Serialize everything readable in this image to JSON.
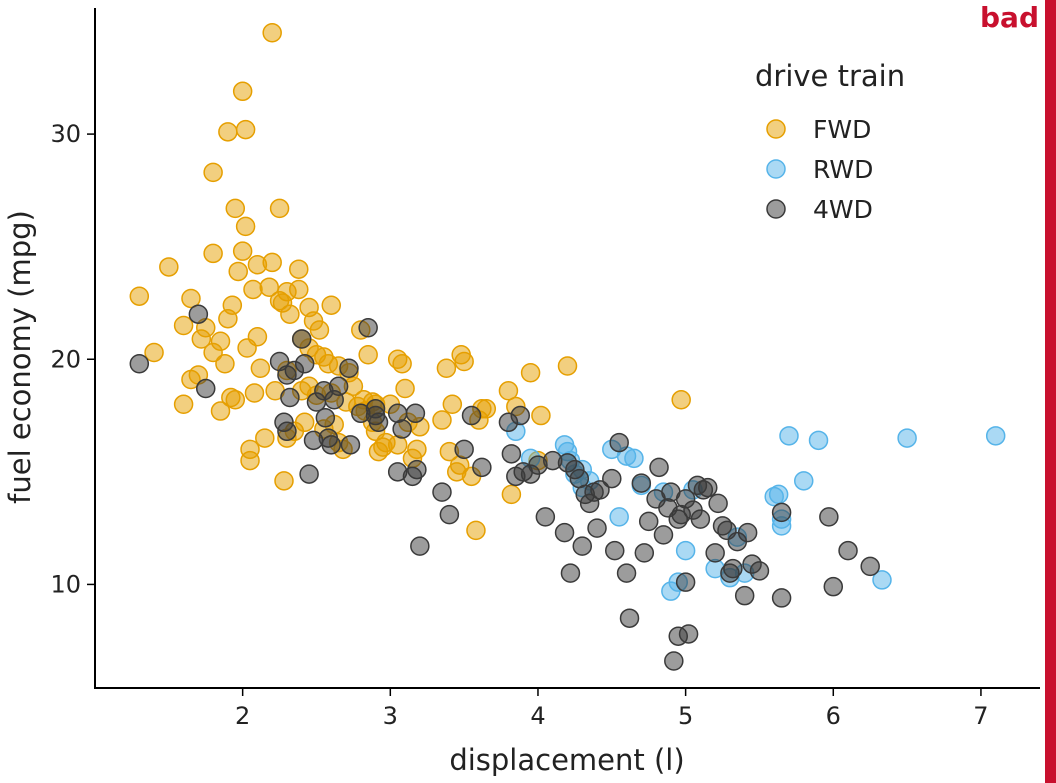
{
  "badge": {
    "text": "bad",
    "color": "#c8102e"
  },
  "colors": {
    "FWD": "#E69F00",
    "RWD": "#56B4E9",
    "4WD": "#3a3a3a"
  },
  "chart_data": {
    "type": "scatter",
    "title": "",
    "xlabel": "displacement (l)",
    "ylabel": "fuel economy (mpg)",
    "xlim": [
      1.0,
      7.4
    ],
    "ylim": [
      5.4,
      35.6
    ],
    "xticks": [
      2,
      3,
      4,
      5,
      6,
      7
    ],
    "yticks": [
      10,
      20,
      30
    ],
    "grid": false,
    "legend": {
      "title": "drive train",
      "position": "top-right",
      "entries": [
        "FWD",
        "RWD",
        "4WD"
      ]
    },
    "series": [
      {
        "name": "FWD",
        "x": [
          1.3,
          1.4,
          1.5,
          1.6,
          1.6,
          1.65,
          1.65,
          1.7,
          1.72,
          1.75,
          1.8,
          1.8,
          1.8,
          1.85,
          1.85,
          1.88,
          1.9,
          1.9,
          1.92,
          1.93,
          1.95,
          1.95,
          1.97,
          2.0,
          2.0,
          2.02,
          2.02,
          2.03,
          2.05,
          2.05,
          2.07,
          2.08,
          2.1,
          2.1,
          2.12,
          2.15,
          2.18,
          2.2,
          2.2,
          2.22,
          2.25,
          2.25,
          2.27,
          2.28,
          2.3,
          2.3,
          2.3,
          2.32,
          2.35,
          2.38,
          2.38,
          2.4,
          2.4,
          2.42,
          2.45,
          2.45,
          2.45,
          2.48,
          2.5,
          2.5,
          2.52,
          2.55,
          2.55,
          2.58,
          2.6,
          2.6,
          2.62,
          2.65,
          2.65,
          2.68,
          2.7,
          2.72,
          2.75,
          2.78,
          2.8,
          2.82,
          2.83,
          2.85,
          2.88,
          2.88,
          2.9,
          2.9,
          2.92,
          2.95,
          2.97,
          3.0,
          3.05,
          3.05,
          3.08,
          3.1,
          3.12,
          3.15,
          3.18,
          3.2,
          3.35,
          3.38,
          3.4,
          3.42,
          3.45,
          3.47,
          3.48,
          3.5,
          3.55,
          3.58,
          3.6,
          3.62,
          3.65,
          3.8,
          3.82,
          3.85,
          3.95,
          4.0,
          4.02,
          4.2,
          4.97
        ],
        "y": [
          22.8,
          20.3,
          24.1,
          21.5,
          18.0,
          22.7,
          19.1,
          19.3,
          20.9,
          21.4,
          24.7,
          28.3,
          20.3,
          20.8,
          17.7,
          19.8,
          30.1,
          21.8,
          18.3,
          22.4,
          26.7,
          18.2,
          23.9,
          24.8,
          31.9,
          30.2,
          25.9,
          20.5,
          16.0,
          15.5,
          23.1,
          18.5,
          21.0,
          24.2,
          19.6,
          16.5,
          23.2,
          34.5,
          24.3,
          18.6,
          26.7,
          22.6,
          22.5,
          14.6,
          23.0,
          16.5,
          19.5,
          22.0,
          16.8,
          24.0,
          23.1,
          20.9,
          18.6,
          17.2,
          22.3,
          18.8,
          20.5,
          21.7,
          20.2,
          18.4,
          21.3,
          20.1,
          16.9,
          19.8,
          22.4,
          18.5,
          17.1,
          16.3,
          19.7,
          16.0,
          18.1,
          19.4,
          18.8,
          17.9,
          21.3,
          18.2,
          17.7,
          20.2,
          18.1,
          17.2,
          18.0,
          16.8,
          15.9,
          16.1,
          16.3,
          18.0,
          20.0,
          16.2,
          19.8,
          18.7,
          17.2,
          15.6,
          16.0,
          17.0,
          17.3,
          19.6,
          15.9,
          18.0,
          15.0,
          15.3,
          20.2,
          19.9,
          14.8,
          12.4,
          17.3,
          17.8,
          17.8,
          18.6,
          14.0,
          17.9,
          19.4,
          15.5,
          17.5,
          19.7,
          18.2
        ]
      },
      {
        "name": "RWD",
        "x": [
          3.85,
          3.95,
          4.18,
          4.2,
          4.22,
          4.25,
          4.3,
          4.3,
          4.35,
          4.5,
          4.55,
          4.6,
          4.65,
          4.7,
          4.85,
          4.9,
          4.95,
          5.0,
          5.05,
          5.2,
          5.3,
          5.35,
          5.4,
          5.6,
          5.63,
          5.65,
          5.65,
          5.7,
          5.8,
          5.9,
          6.33,
          6.5,
          7.1
        ],
        "y": [
          16.8,
          15.6,
          16.2,
          15.9,
          15.5,
          14.9,
          14.3,
          15.1,
          14.6,
          16.0,
          13.0,
          15.7,
          15.6,
          14.4,
          14.1,
          9.7,
          10.1,
          11.5,
          14.2,
          10.7,
          10.3,
          12.1,
          10.5,
          13.9,
          14.0,
          12.6,
          12.9,
          16.6,
          14.6,
          16.4,
          10.2,
          16.5,
          16.6
        ]
      },
      {
        "name": "4WD",
        "x": [
          1.3,
          1.7,
          1.75,
          2.25,
          2.28,
          2.3,
          2.3,
          2.32,
          2.35,
          2.4,
          2.42,
          2.45,
          2.48,
          2.5,
          2.55,
          2.56,
          2.58,
          2.6,
          2.62,
          2.65,
          2.72,
          2.73,
          2.8,
          2.85,
          2.9,
          2.9,
          2.92,
          3.05,
          3.05,
          3.08,
          3.15,
          3.17,
          3.18,
          3.2,
          3.35,
          3.4,
          3.5,
          3.55,
          3.62,
          3.8,
          3.82,
          3.85,
          3.88,
          3.9,
          3.95,
          4.0,
          4.05,
          4.1,
          4.18,
          4.2,
          4.22,
          4.25,
          4.28,
          4.3,
          4.32,
          4.35,
          4.38,
          4.4,
          4.42,
          4.5,
          4.52,
          4.55,
          4.6,
          4.62,
          4.7,
          4.72,
          4.75,
          4.8,
          4.82,
          4.85,
          4.88,
          4.9,
          4.92,
          4.95,
          4.95,
          4.97,
          5.0,
          5.0,
          5.02,
          5.05,
          5.08,
          5.1,
          5.12,
          5.15,
          5.2,
          5.22,
          5.25,
          5.28,
          5.3,
          5.32,
          5.35,
          5.4,
          5.42,
          5.45,
          5.5,
          5.65,
          5.65,
          5.97,
          6.0,
          6.1,
          6.25
        ],
        "y": [
          19.8,
          22.0,
          18.7,
          19.9,
          17.2,
          16.8,
          19.3,
          18.3,
          19.5,
          20.9,
          19.8,
          14.9,
          16.4,
          18.1,
          18.6,
          17.4,
          16.5,
          16.2,
          18.2,
          18.8,
          19.6,
          16.2,
          17.6,
          21.4,
          17.5,
          17.8,
          17.2,
          17.6,
          15.0,
          16.9,
          14.8,
          17.6,
          15.1,
          11.7,
          14.1,
          13.1,
          16.0,
          17.5,
          15.2,
          17.2,
          15.8,
          14.8,
          17.5,
          15.0,
          14.9,
          15.3,
          13.0,
          15.5,
          12.3,
          15.4,
          10.5,
          15.1,
          14.7,
          11.7,
          14.0,
          13.6,
          14.1,
          12.5,
          14.2,
          14.7,
          11.5,
          16.3,
          10.5,
          8.5,
          14.5,
          11.4,
          12.8,
          13.8,
          15.2,
          12.2,
          13.4,
          14.1,
          6.6,
          7.7,
          12.9,
          13.1,
          10.1,
          13.8,
          7.8,
          13.3,
          14.4,
          12.9,
          14.2,
          14.3,
          11.4,
          13.6,
          12.6,
          12.4,
          10.5,
          10.7,
          11.9,
          9.5,
          12.3,
          10.9,
          10.6,
          9.4,
          13.2,
          13.0,
          9.9,
          11.5,
          10.8
        ]
      }
    ]
  }
}
